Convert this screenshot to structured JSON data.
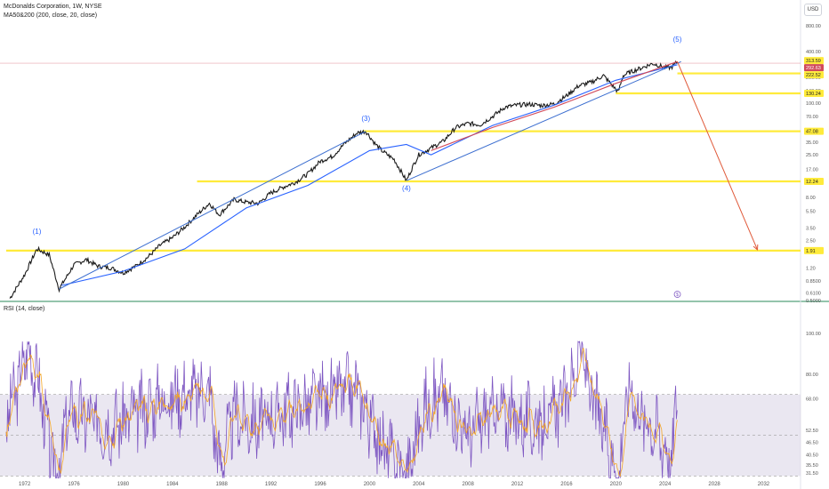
{
  "header": {
    "title": "McDonalds Corporation, 1W, NYSE",
    "indicator": "MA50&200 (200, close, 20, close)",
    "currency": "USD",
    "rsi_label": "RSI (14, close)"
  },
  "colors": {
    "price": "#1a1a1a",
    "ma_blue": "#2962ff",
    "trend_blue": "#3d6fd0",
    "ma_red": "#d14a5a",
    "yellow": "#ffeb3b",
    "rsi_line": "#7e57c2",
    "rsi_ma": "#f5a623",
    "rsi_band": "#d8d3e6",
    "arrow": "#e05a3a"
  },
  "chart_data": [
    {
      "type": "line",
      "title": "McDonalds Corporation, 1W, NYSE",
      "y_scale": "log",
      "ylim": [
        0.5,
        900
      ],
      "xlim": [
        1970,
        2035
      ],
      "x_ticks": [
        1972,
        1976,
        1980,
        1984,
        1988,
        1992,
        1996,
        2000,
        2004,
        2008,
        2012,
        2016,
        2020,
        2024,
        2028,
        2032
      ],
      "y_ticks": [
        "800.00",
        "400.00",
        "200.00",
        "140.00",
        "100.00",
        "70.00",
        "35.00",
        "25.00",
        "17.00",
        "8.00",
        "5.50",
        "3.50",
        "2.50",
        "1.20",
        "0.8500",
        "0.6100",
        "0.5000"
      ],
      "price_path": [
        [
          1970.8,
          0.53
        ],
        [
          1972,
          1.0
        ],
        [
          1973,
          2.0
        ],
        [
          1974,
          1.7
        ],
        [
          1974.8,
          0.68
        ],
        [
          1976,
          1.3
        ],
        [
          1977,
          1.5
        ],
        [
          1978,
          1.25
        ],
        [
          1979,
          1.2
        ],
        [
          1980,
          1.05
        ],
        [
          1981,
          1.25
        ],
        [
          1982,
          1.6
        ],
        [
          1983,
          2.2
        ],
        [
          1984,
          2.7
        ],
        [
          1985,
          3.6
        ],
        [
          1986,
          5.0
        ],
        [
          1987,
          6.8
        ],
        [
          1987.8,
          5.0
        ],
        [
          1989,
          7.5
        ],
        [
          1990,
          7.0
        ],
        [
          1991,
          6.8
        ],
        [
          1992,
          9.0
        ],
        [
          1993,
          10.5
        ],
        [
          1994,
          12.0
        ],
        [
          1995,
          15.0
        ],
        [
          1996,
          21.0
        ],
        [
          1997,
          24.0
        ],
        [
          1998,
          34.0
        ],
        [
          1999,
          45.0
        ],
        [
          1999.7,
          47.0
        ],
        [
          2000.5,
          33.0
        ],
        [
          2001,
          28.0
        ],
        [
          2002,
          22.0
        ],
        [
          2003,
          12.5
        ],
        [
          2003.5,
          18.0
        ],
        [
          2004,
          25.0
        ],
        [
          2005,
          30.0
        ],
        [
          2006,
          36.0
        ],
        [
          2007,
          52.0
        ],
        [
          2008,
          58.0
        ],
        [
          2009,
          56.0
        ],
        [
          2010,
          70.0
        ],
        [
          2011,
          90.0
        ],
        [
          2012,
          95.0
        ],
        [
          2013,
          97.0
        ],
        [
          2014,
          94.0
        ],
        [
          2015,
          98.0
        ],
        [
          2016,
          122.0
        ],
        [
          2017,
          160.0
        ],
        [
          2018,
          175.0
        ],
        [
          2019,
          210.0
        ],
        [
          2020.2,
          135.0
        ],
        [
          2020.6,
          210.0
        ],
        [
          2021,
          225.0
        ],
        [
          2022,
          255.0
        ],
        [
          2023,
          290.0
        ],
        [
          2024,
          262.0
        ],
        [
          2024.5,
          260.0
        ],
        [
          2025,
          305.0
        ]
      ],
      "series": [
        {
          "values": [
            [
              1975,
              0.75
            ],
            [
              1980,
              1.1
            ],
            [
              1985,
              2.0
            ],
            [
              1990,
              6.0
            ],
            [
              1995,
              11.0
            ],
            [
              2000,
              28.0
            ],
            [
              2003,
              33.0
            ],
            [
              2005,
              25.0
            ],
            [
              2010,
              55.0
            ],
            [
              2015,
              95.0
            ],
            [
              2020,
              185.0
            ],
            [
              2025,
              280.0
            ]
          ]
        },
        {
          "values": [
            [
              2005,
              28.0
            ],
            [
              2010,
              52.0
            ],
            [
              2015,
              90.0
            ],
            [
              2020,
              170.0
            ],
            [
              2025,
              305.0
            ]
          ]
        }
      ],
      "trendlines": [
        {
          "from": [
            1974.8,
            0.68
          ],
          "to": [
            1999.7,
            47.0
          ]
        },
        {
          "from": [
            2003,
            12.5
          ],
          "to": [
            2025.3,
            305.0
          ]
        }
      ],
      "price_labels": [
        {
          "label": "292.63",
          "price": 292.63,
          "color": "#d14a5a"
        },
        {
          "label": "313.59",
          "price": 313.59,
          "color": "#ffeb3b"
        },
        {
          "label": "222.52",
          "price": 222.52,
          "color": "#ffeb3b"
        },
        {
          "label": "130.24",
          "price": 130.24,
          "color": "#ffeb3b"
        },
        {
          "label": "47.08",
          "price": 47.08,
          "color": "#ffeb3b"
        },
        {
          "label": "12.24",
          "price": 12.24,
          "color": "#ffeb3b"
        },
        {
          "label": "1.91",
          "price": 1.91,
          "color": "#ffeb3b"
        }
      ],
      "horizontal_levels": [
        {
          "price": 222.52,
          "x_from": 2025
        },
        {
          "price": 130.24,
          "x_from": 2020
        },
        {
          "price": 47.08,
          "x_from": 1999.5
        },
        {
          "price": 12.24,
          "x_from": 1986
        },
        {
          "price": 1.91,
          "x_from": 1970.5
        }
      ],
      "waves": [
        {
          "label": "(1)",
          "x": 1973,
          "price": 3.0
        },
        {
          "label": "(3)",
          "x": 1999.7,
          "price": 62.0
        },
        {
          "label": "(4)",
          "x": 2003,
          "price": 9.5
        },
        {
          "label": "(5)",
          "x": 2025,
          "price": 520.0
        }
      ],
      "projection_arrow": {
        "from": [
          2025,
          305.0
        ],
        "to": [
          2031.5,
          1.95
        ]
      },
      "event_marker": {
        "label": "$",
        "x": 2025
      }
    },
    {
      "type": "line",
      "title": "RSI (14, close)",
      "ylim": [
        28,
        110
      ],
      "y_ticks": [
        "100.00",
        "80.00",
        "68.00",
        "52.50",
        "46.50",
        "40.50",
        "35.50",
        "31.50"
      ],
      "band": [
        30,
        70
      ],
      "midline": 50,
      "profile": [
        [
          1970.5,
          58
        ],
        [
          1971.6,
          78
        ],
        [
          1972.2,
          92
        ],
        [
          1973,
          80
        ],
        [
          1974,
          45
        ],
        [
          1974.8,
          30
        ],
        [
          1975.5,
          62
        ],
        [
          1977,
          58
        ],
        [
          1979,
          55
        ],
        [
          1981,
          60
        ],
        [
          1983,
          68
        ],
        [
          1985,
          70
        ],
        [
          1987,
          72
        ],
        [
          1987.8,
          35
        ],
        [
          1989,
          60
        ],
        [
          1991,
          55
        ],
        [
          1993,
          62
        ],
        [
          1995,
          65
        ],
        [
          1997,
          70
        ],
        [
          1999,
          72
        ],
        [
          2001,
          45
        ],
        [
          2003,
          30
        ],
        [
          2004.5,
          65
        ],
        [
          2006,
          70
        ],
        [
          2008,
          50
        ],
        [
          2010,
          62
        ],
        [
          2012,
          58
        ],
        [
          2014,
          55
        ],
        [
          2016,
          68
        ],
        [
          2017.2,
          92
        ],
        [
          2018,
          70
        ],
        [
          2020.2,
          30
        ],
        [
          2021,
          75
        ],
        [
          2022,
          60
        ],
        [
          2023,
          55
        ],
        [
          2024,
          45
        ],
        [
          2024.5,
          35
        ],
        [
          2025,
          72
        ]
      ]
    }
  ]
}
